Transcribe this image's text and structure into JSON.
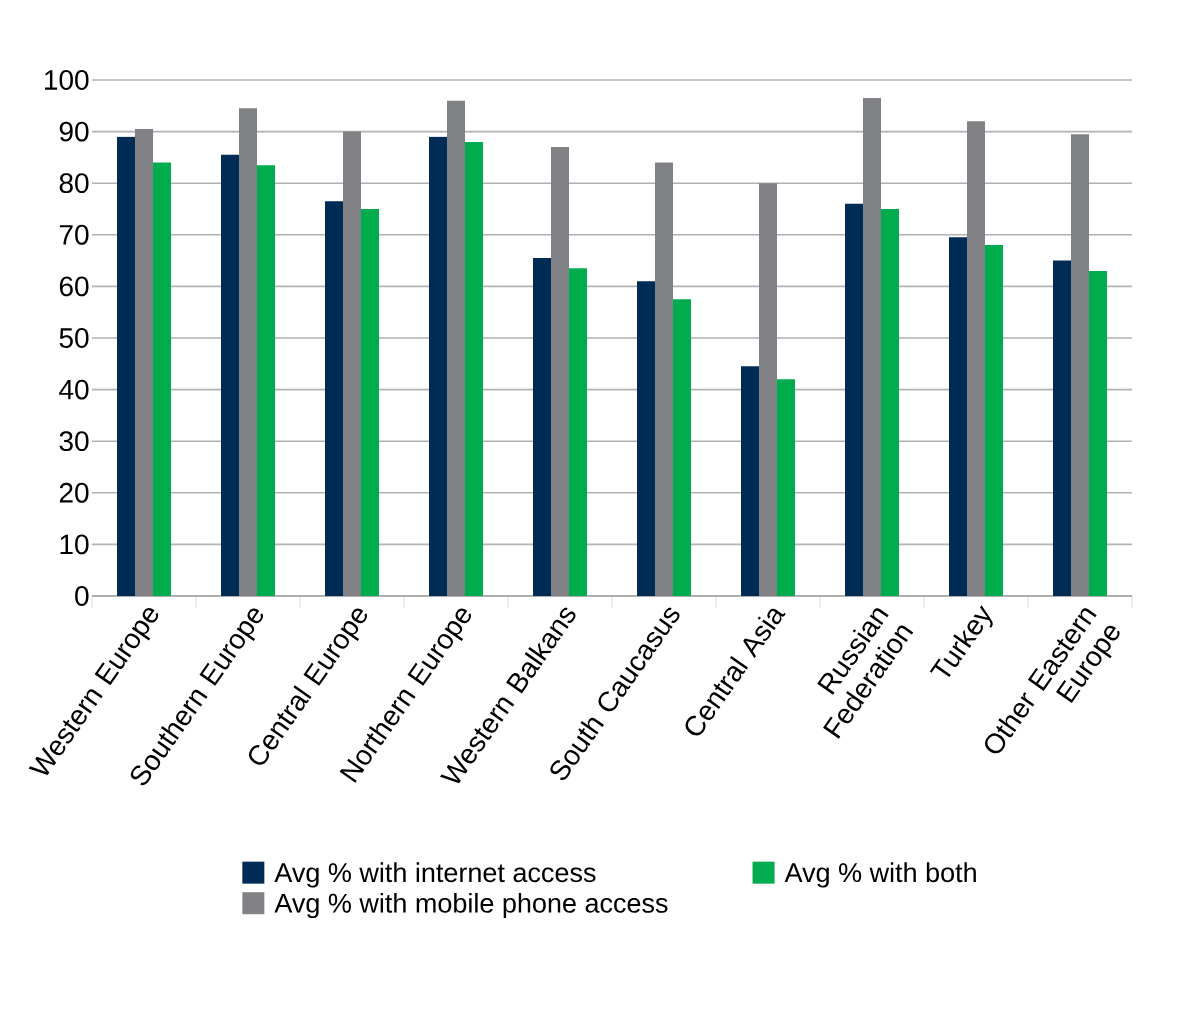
{
  "chart_data": {
    "type": "bar",
    "categories": [
      "Western Europe",
      "Southern Europe",
      "Central Europe",
      "Northern Europe",
      "Western Balkans",
      "South Caucasus",
      "Central Asia",
      "Russian Federation",
      "Turkey",
      "Other Eastern Europe"
    ],
    "series": [
      {
        "name": "Avg % with internet access",
        "color": "#002b55",
        "values": [
          89,
          85.5,
          76.5,
          89,
          65.5,
          61,
          44.5,
          76,
          69.5,
          65
        ]
      },
      {
        "name": "Avg % with mobile phone access",
        "color": "#808184",
        "values": [
          90.5,
          94.5,
          90,
          96,
          87,
          84,
          80,
          96.5,
          92,
          89.5
        ]
      },
      {
        "name": "Avg % with both",
        "color": "#00ac4e",
        "values": [
          84,
          83.5,
          75,
          88,
          63.5,
          57.5,
          42,
          75,
          68,
          63
        ]
      }
    ],
    "ylim": [
      0,
      100
    ],
    "yticks": [
      0,
      10,
      20,
      30,
      40,
      50,
      60,
      70,
      80,
      90,
      100
    ],
    "grid": "y",
    "legend": "bottom"
  }
}
